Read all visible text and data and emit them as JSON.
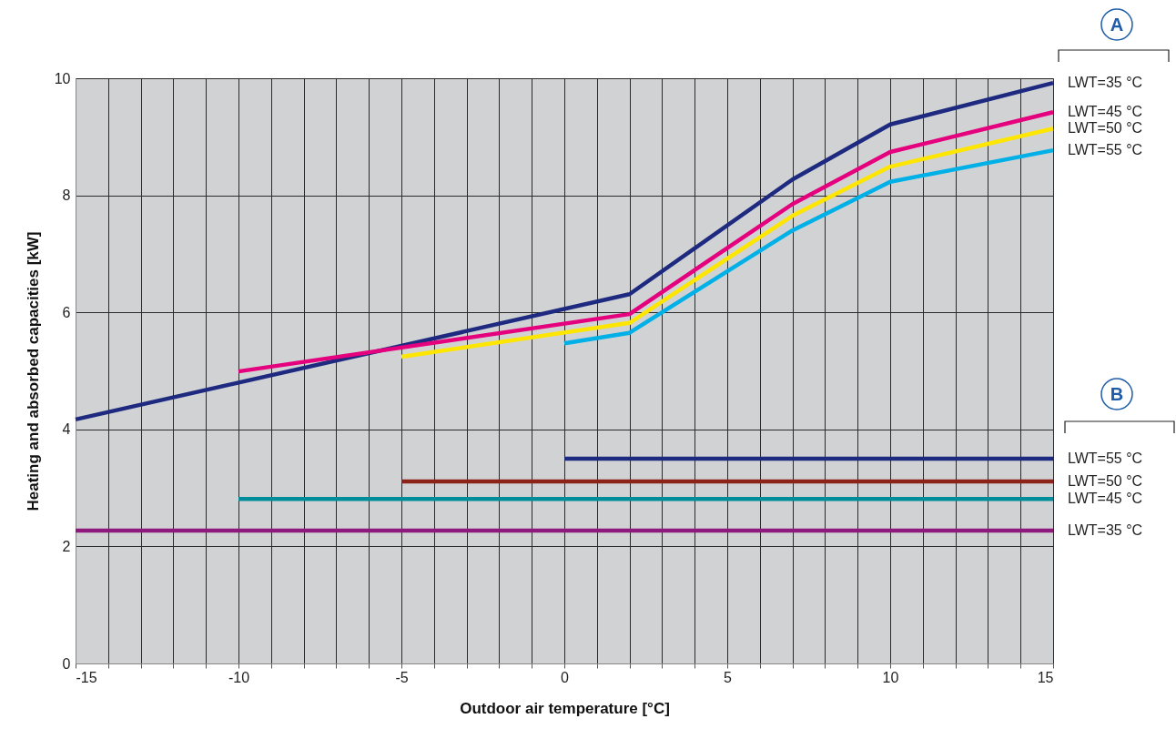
{
  "chart_data": {
    "type": "line",
    "xlabel": "Outdoor air temperature [°C]",
    "ylabel": "Heating and absorbed capacities [kW]",
    "xlim": [
      -15,
      15
    ],
    "ylim": [
      0,
      10
    ],
    "xticks": [
      -15,
      {
        "value": -14,
        "label": null
      },
      {
        "value": -13,
        "label": null
      },
      {
        "value": -12,
        "label": null
      },
      {
        "value": -11,
        "label": null
      },
      -10,
      {
        "value": -9,
        "label": null
      },
      {
        "value": -8,
        "label": null
      },
      {
        "value": -7,
        "label": null
      },
      {
        "value": -6,
        "label": null
      },
      -5,
      {
        "value": -4,
        "label": null
      },
      {
        "value": -3,
        "label": null
      },
      {
        "value": -2,
        "label": null
      },
      {
        "value": -1,
        "label": null
      },
      0,
      {
        "value": 1,
        "label": null
      },
      {
        "value": 2,
        "label": null
      },
      {
        "value": 3,
        "label": null
      },
      {
        "value": 4,
        "label": null
      },
      5,
      {
        "value": 6,
        "label": null
      },
      {
        "value": 7,
        "label": null
      },
      {
        "value": 8,
        "label": null
      },
      {
        "value": 9,
        "label": null
      },
      10,
      {
        "value": 11,
        "label": null
      },
      {
        "value": 12,
        "label": null
      },
      {
        "value": 13,
        "label": null
      },
      {
        "value": 14,
        "label": null
      },
      15
    ],
    "yticks": [
      0,
      2,
      4,
      6,
      8,
      10
    ],
    "grid": true,
    "line_style": "solid",
    "annotations": [
      "A",
      "B"
    ],
    "series": [
      {
        "name": "LWT=35 °C",
        "color": "#1e2a80",
        "x": [
          -15,
          2,
          7,
          10,
          15
        ],
        "values": [
          4.17,
          6.31,
          8.27,
          9.21,
          9.92
        ]
      },
      {
        "name": "LWT=45 °C",
        "color": "#e5007e",
        "x": [
          -10,
          2,
          7,
          10,
          15
        ],
        "values": [
          4.99,
          5.97,
          7.85,
          8.74,
          9.42
        ]
      },
      {
        "name": "LWT=50 °C",
        "color": "#ffe600",
        "x": [
          -5,
          2,
          7,
          10,
          15
        ],
        "values": [
          5.24,
          5.82,
          7.65,
          8.49,
          9.14
        ]
      },
      {
        "name": "LWT=55 °C",
        "color": "#00b0e6",
        "x": [
          0,
          2,
          7,
          10,
          15
        ],
        "values": [
          5.47,
          5.65,
          7.4,
          8.23,
          8.77
        ]
      },
      {
        "name": "LWT=55 °C",
        "color": "#1e2a80",
        "x": [
          0,
          15
        ],
        "values": [
          3.5,
          3.5
        ]
      },
      {
        "name": "LWT=50 °C",
        "color": "#8b2318",
        "x": [
          -5,
          15
        ],
        "values": [
          3.11,
          3.11
        ]
      },
      {
        "name": "LWT=45 °C",
        "color": "#008c99",
        "x": [
          -10,
          15
        ],
        "values": [
          2.81,
          2.81
        ]
      },
      {
        "name": "LWT=35 °C",
        "color": "#8e1a7e",
        "x": [
          -15,
          15
        ],
        "values": [
          2.27,
          2.27
        ]
      }
    ]
  }
}
